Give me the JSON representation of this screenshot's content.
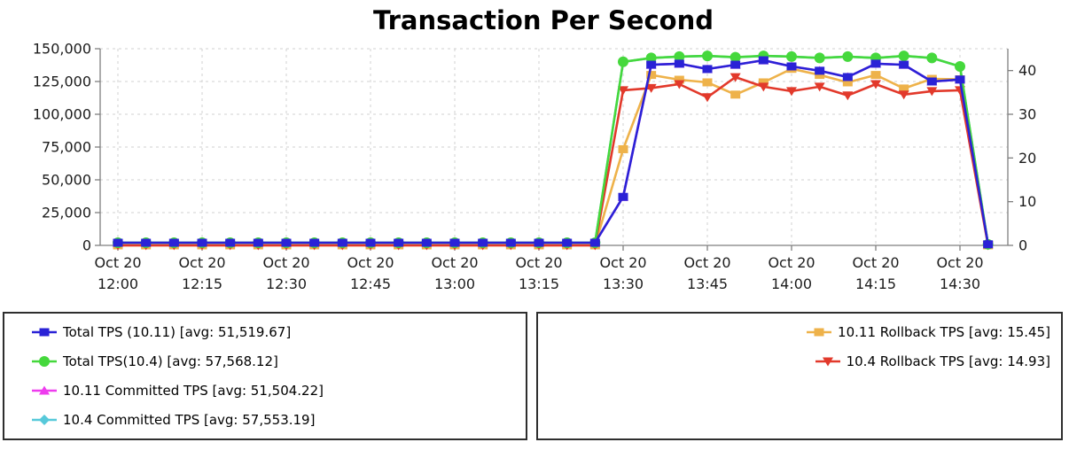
{
  "chart_data": {
    "type": "line",
    "title": "Transaction Per Second",
    "x_axis": {
      "tick_minutes": [
        0,
        15,
        30,
        45,
        60,
        75,
        90,
        105,
        120,
        135,
        150
      ],
      "tick_labels": [
        {
          "top": "Oct 20",
          "bottom": "12:00"
        },
        {
          "top": "Oct 20",
          "bottom": "12:15"
        },
        {
          "top": "Oct 20",
          "bottom": "12:30"
        },
        {
          "top": "Oct 20",
          "bottom": "12:45"
        },
        {
          "top": "Oct 20",
          "bottom": "13:00"
        },
        {
          "top": "Oct 20",
          "bottom": "13:15"
        },
        {
          "top": "Oct 20",
          "bottom": "13:30"
        },
        {
          "top": "Oct 20",
          "bottom": "13:45"
        },
        {
          "top": "Oct 20",
          "bottom": "14:00"
        },
        {
          "top": "Oct 20",
          "bottom": "14:15"
        },
        {
          "top": "Oct 20",
          "bottom": "14:30"
        }
      ]
    },
    "left_axis": {
      "range": [
        0,
        150000
      ],
      "ticks": [
        {
          "v": 0,
          "label": "0"
        },
        {
          "v": 25000,
          "label": "25,000"
        },
        {
          "v": 50000,
          "label": "50,000"
        },
        {
          "v": 75000,
          "label": "75,000"
        },
        {
          "v": 100000,
          "label": "100,000"
        },
        {
          "v": 125000,
          "label": "125,000"
        },
        {
          "v": 150000,
          "label": "150,000"
        }
      ]
    },
    "right_axis": {
      "range": [
        0,
        45
      ],
      "ticks": [
        {
          "v": 0,
          "label": "0"
        },
        {
          "v": 10,
          "label": "10"
        },
        {
          "v": 20,
          "label": "20"
        },
        {
          "v": 30,
          "label": "30"
        },
        {
          "v": 40,
          "label": "40"
        }
      ]
    },
    "x_minutes": [
      0,
      5,
      10,
      15,
      20,
      25,
      30,
      35,
      40,
      45,
      50,
      55,
      60,
      65,
      70,
      75,
      80,
      85,
      90,
      95,
      100,
      105,
      110,
      115,
      120,
      125,
      130,
      135,
      140,
      145,
      150,
      155
    ],
    "series": [
      {
        "name": "10.11 Committed TPS",
        "axis": "left",
        "color": "#ee3cee",
        "marker": "triangle-up",
        "z": 1,
        "values": [
          1960,
          1960,
          1960,
          1960,
          1960,
          1960,
          1960,
          1960,
          1960,
          1960,
          1960,
          1960,
          1960,
          1960,
          1960,
          1960,
          1960,
          1960,
          36960,
          137760,
          138560,
          134460,
          137760,
          141160,
          136460,
          133160,
          128360,
          138560,
          137760,
          124960,
          126460,
          760
        ]
      },
      {
        "name": "10.4 Committed TPS",
        "axis": "left",
        "color": "#57c9da",
        "marker": "diamond",
        "z": 2,
        "values": [
          1960,
          1960,
          1960,
          1960,
          1960,
          1960,
          1960,
          1960,
          1960,
          1960,
          1960,
          1960,
          1960,
          1960,
          1960,
          1960,
          1960,
          1960,
          139960,
          142960,
          143960,
          144460,
          143460,
          144460,
          143960,
          142960,
          143960,
          142960,
          144460,
          142960,
          136460,
          760
        ]
      },
      {
        "name": "10.11 Rollback TPS",
        "axis": "right",
        "color": "#eeb24a",
        "marker": "square",
        "z": 3,
        "values": [
          0,
          0,
          0,
          0,
          0,
          0,
          0,
          0,
          0,
          0,
          0,
          0,
          0,
          0,
          0,
          0,
          0,
          0,
          22,
          39,
          37.9,
          37.3,
          34.5,
          37.3,
          40.4,
          39,
          37.3,
          39,
          35.9,
          38.1,
          38,
          0
        ]
      },
      {
        "name": "10.4 Rollback TPS",
        "axis": "right",
        "color": "#e2392b",
        "marker": "triangle-down",
        "z": 4,
        "values": [
          0,
          0,
          0,
          0,
          0,
          0,
          0,
          0,
          0,
          0,
          0,
          0,
          0,
          0,
          0,
          0,
          0,
          0,
          35.5,
          36,
          36.9,
          33.9,
          38.5,
          36.3,
          35.3,
          36.3,
          34.3,
          36.9,
          34.5,
          35.3,
          35.5,
          0
        ]
      },
      {
        "name": "Total TPS(10.4)",
        "axis": "left",
        "color": "#45d83c",
        "marker": "circle",
        "z": 5,
        "values": [
          2000,
          2000,
          2000,
          2000,
          2000,
          2000,
          2000,
          2000,
          2000,
          2000,
          2000,
          2000,
          2000,
          2000,
          2000,
          2000,
          2000,
          2000,
          140000,
          143000,
          144000,
          144500,
          143500,
          144500,
          144000,
          143000,
          144000,
          143000,
          144500,
          143000,
          136500,
          800
        ]
      },
      {
        "name": "Total TPS (10.11)",
        "axis": "left",
        "color": "#2a22d6",
        "marker": "square",
        "z": 6,
        "values": [
          2000,
          2000,
          2000,
          2000,
          2000,
          2000,
          2000,
          2000,
          2000,
          2000,
          2000,
          2000,
          2000,
          2000,
          2000,
          2000,
          2000,
          2000,
          37000,
          137800,
          138600,
          134500,
          137800,
          141200,
          136500,
          133200,
          128400,
          138600,
          137800,
          125000,
          126500,
          800
        ]
      }
    ]
  },
  "legend_left": {
    "items": [
      {
        "label": "Total TPS (10.11) [avg: 51,519.67]",
        "series": 5
      },
      {
        "label": "Total TPS(10.4) [avg: 57,568.12]",
        "series": 4
      },
      {
        "label": "10.11 Committed TPS [avg: 51,504.22]",
        "series": 0
      },
      {
        "label": "10.4 Committed TPS [avg: 57,553.19]",
        "series": 1
      }
    ]
  },
  "legend_right": {
    "items": [
      {
        "label": "10.11 Rollback TPS [avg: 15.45]",
        "series": 2
      },
      {
        "label": "10.4 Rollback TPS [avg: 14.93]",
        "series": 3
      }
    ]
  },
  "colors": {
    "axis_line": "#7f7f7f",
    "grid_line": "#d2d2d2",
    "legend_border": "#2e2e2e"
  }
}
